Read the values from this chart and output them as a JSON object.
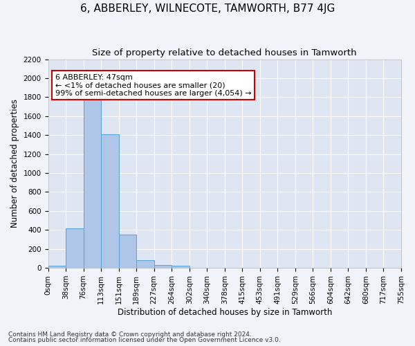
{
  "title": "6, ABBERLEY, WILNECOTE, TAMWORTH, B77 4JG",
  "subtitle": "Size of property relative to detached houses in Tamworth",
  "xlabel": "Distribution of detached houses by size in Tamworth",
  "ylabel": "Number of detached properties",
  "annotation_title": "6 ABBERLEY: 47sqm",
  "annotation_line1": "← <1% of detached houses are smaller (20)",
  "annotation_line2": "99% of semi-detached houses are larger (4,054) →",
  "footer1": "Contains HM Land Registry data © Crown copyright and database right 2024.",
  "footer2": "Contains public sector information licensed under the Open Government Licence v3.0.",
  "bin_labels": [
    "0sqm",
    "38sqm",
    "76sqm",
    "113sqm",
    "151sqm",
    "189sqm",
    "227sqm",
    "264sqm",
    "302sqm",
    "340sqm",
    "378sqm",
    "415sqm",
    "453sqm",
    "491sqm",
    "529sqm",
    "566sqm",
    "604sqm",
    "642sqm",
    "680sqm",
    "717sqm",
    "755sqm"
  ],
  "bar_values": [
    20,
    420,
    1810,
    1410,
    350,
    80,
    30,
    20,
    0,
    0,
    0,
    0,
    0,
    0,
    0,
    0,
    0,
    0,
    0,
    0
  ],
  "bar_color": "#aec6e8",
  "bar_edge_color": "#5a9fd4",
  "ylim": [
    0,
    2200
  ],
  "yticks": [
    0,
    200,
    400,
    600,
    800,
    1000,
    1200,
    1400,
    1600,
    1800,
    2000,
    2200
  ],
  "fig_background": "#f0f4fa",
  "plot_background": "#dde6f2",
  "grid_color": "#ffffff",
  "annotation_box_facecolor": "#ffffff",
  "annotation_box_edgecolor": "#cc0000",
  "title_fontsize": 11,
  "subtitle_fontsize": 9.5,
  "axis_label_fontsize": 8.5,
  "tick_fontsize": 7.5,
  "annotation_fontsize": 8,
  "footer_fontsize": 6.5
}
